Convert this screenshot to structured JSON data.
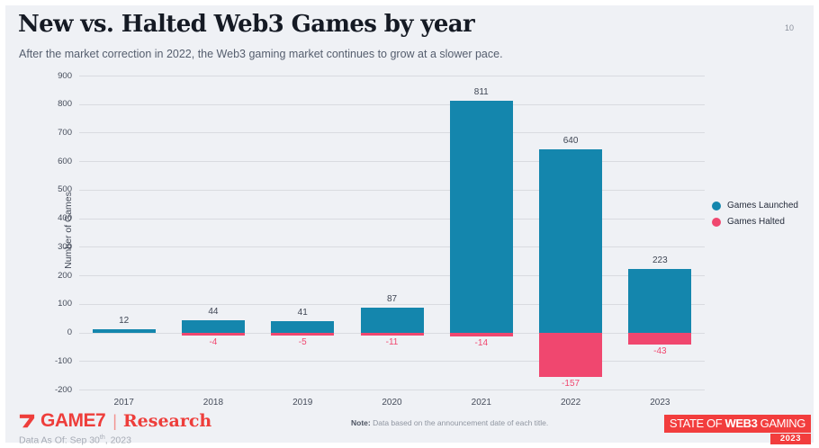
{
  "header": {
    "title": "New vs. Halted Web3 Games by year",
    "subtitle": "After the market correction in 2022, the Web3 gaming market continues to grow at a slower pace.",
    "page_number": "10"
  },
  "chart_data": {
    "type": "bar",
    "title": "New vs. Halted Web3 Games by year",
    "categories": [
      "2017",
      "2018",
      "2019",
      "2020",
      "2021",
      "2022",
      "2023"
    ],
    "series": [
      {
        "name": "Games Launched",
        "color": "#1486ad",
        "values": [
          12,
          44,
          41,
          87,
          811,
          640,
          223
        ],
        "labels": [
          "12",
          "44",
          "41",
          "87",
          "811",
          "640",
          "223"
        ]
      },
      {
        "name": "Games Halted",
        "color": "#f0476f",
        "values": [
          null,
          -4,
          -5,
          -11,
          -14,
          -157,
          -43
        ],
        "labels": [
          null,
          "-4",
          "-5",
          "-11",
          "-14",
          "-157",
          "-43"
        ]
      }
    ],
    "xlabel": "",
    "ylabel": "Number of Games",
    "ylim": [
      -200,
      900
    ],
    "ytick_step": 100,
    "grid": true,
    "legend_position": "right"
  },
  "colors": {
    "slide_background": "#eff1f5",
    "launched_blue": "#1486ad",
    "halted_pink": "#f0476f",
    "brand_red": "#ee3e3b",
    "badge_red": "#f23d3d"
  },
  "footer": {
    "logo": {
      "mark": "7-logomark",
      "wordmark": "GAME7",
      "divider": "|",
      "suffix": "Research"
    },
    "data_as_of": {
      "prefix": "Data As Of: Sep 30",
      "sup": "th",
      "suffix": ", 2023"
    },
    "note": {
      "label": "Note:",
      "text": " Data based on the announcement date of each title."
    },
    "badge": {
      "part_regular_1": "STATE OF ",
      "part_bold": "WEB3",
      "part_regular_2": " GAMING",
      "year": "2023"
    }
  }
}
